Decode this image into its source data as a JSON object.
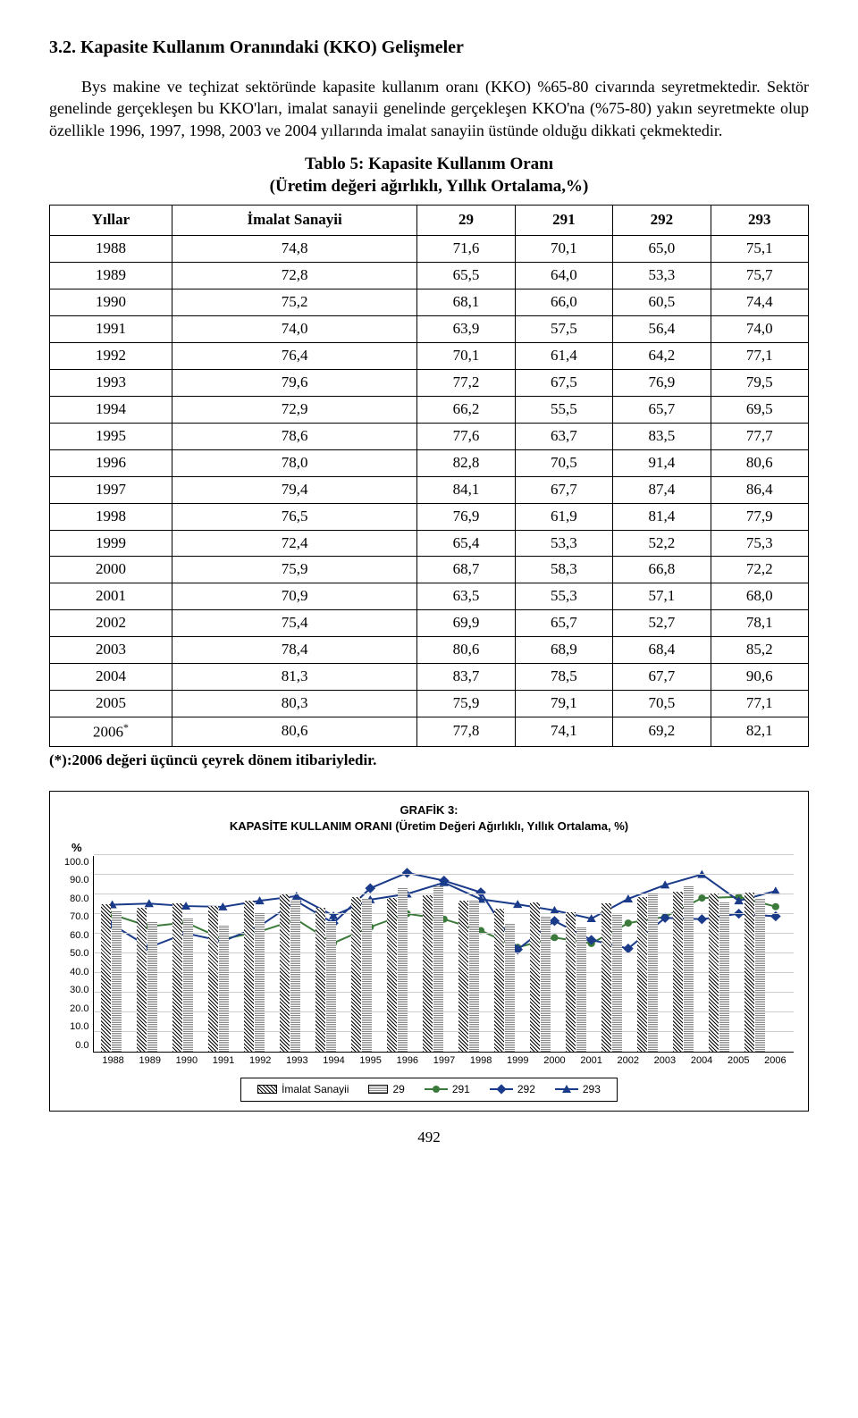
{
  "section_heading": "3.2. Kapasite Kullanım Oranındaki (KKO) Gelişmeler",
  "para1": "Bys makine ve teçhizat sektöründe kapasite kullanım oranı (KKO) %65-80 civarında seyretmektedir. Sektör genelinde gerçekleşen bu KKO'ları, imalat sanayii genelinde gerçekleşen KKO'na (%75-80) yakın seyretmekte olup özellikle 1996, 1997, 1998, 2003 ve 2004 yıllarında imalat sanayiin üstünde olduğu dikkati çekmektedir.",
  "table_title_line1": "Tablo 5: Kapasite Kullanım Oranı",
  "table_title_line2": "(Üretim değeri ağırlıklı, Yıllık Ortalama,%)",
  "table": {
    "columns": [
      "Yıllar",
      "İmalat Sanayii",
      "29",
      "291",
      "292",
      "293"
    ],
    "rows": [
      [
        "1988",
        "74,8",
        "71,6",
        "70,1",
        "65,0",
        "75,1"
      ],
      [
        "1989",
        "72,8",
        "65,5",
        "64,0",
        "53,3",
        "75,7"
      ],
      [
        "1990",
        "75,2",
        "68,1",
        "66,0",
        "60,5",
        "74,4"
      ],
      [
        "1991",
        "74,0",
        "63,9",
        "57,5",
        "56,4",
        "74,0"
      ],
      [
        "1992",
        "76,4",
        "70,1",
        "61,4",
        "64,2",
        "77,1"
      ],
      [
        "1993",
        "79,6",
        "77,2",
        "67,5",
        "76,9",
        "79,5"
      ],
      [
        "1994",
        "72,9",
        "66,2",
        "55,5",
        "65,7",
        "69,5"
      ],
      [
        "1995",
        "78,6",
        "77,6",
        "63,7",
        "83,5",
        "77,7"
      ],
      [
        "1996",
        "78,0",
        "82,8",
        "70,5",
        "91,4",
        "80,6"
      ],
      [
        "1997",
        "79,4",
        "84,1",
        "67,7",
        "87,4",
        "86,4"
      ],
      [
        "1998",
        "76,5",
        "76,9",
        "61,9",
        "81,4",
        "77,9"
      ],
      [
        "1999",
        "72,4",
        "65,4",
        "53,3",
        "52,2",
        "75,3"
      ],
      [
        "2000",
        "75,9",
        "68,7",
        "58,3",
        "66,8",
        "72,2"
      ],
      [
        "2001",
        "70,9",
        "63,5",
        "55,3",
        "57,1",
        "68,0"
      ],
      [
        "2002",
        "75,4",
        "69,9",
        "65,7",
        "52,7",
        "78,1"
      ],
      [
        "2003",
        "78,4",
        "80,6",
        "68,9",
        "68,4",
        "85,2"
      ],
      [
        "2004",
        "81,3",
        "83,7",
        "78,5",
        "67,7",
        "90,6"
      ],
      [
        "2005",
        "80,3",
        "75,9",
        "79,1",
        "70,5",
        "77,1"
      ],
      [
        "2006*",
        "80,6",
        "77,8",
        "74,1",
        "69,2",
        "82,1"
      ]
    ]
  },
  "footnote": "(*):2006 değeri üçüncü çeyrek dönem itibariyledir.",
  "chart": {
    "title_line1": "GRAFİK 3:",
    "title_line2": "KAPASİTE KULLANIM ORANI (Üretim Değeri Ağırlıklı, Yıllık Ortalama, %)",
    "y_label": "%",
    "ylim": [
      0,
      100
    ],
    "ytick_step": 10,
    "yticks": [
      "100.0",
      "90.0",
      "80.0",
      "70.0",
      "60.0",
      "50.0",
      "40.0",
      "30.0",
      "20.0",
      "10.0",
      "0.0"
    ],
    "categories": [
      "1988",
      "1989",
      "1990",
      "1991",
      "1992",
      "1993",
      "1994",
      "1995",
      "1996",
      "1997",
      "1998",
      "1999",
      "2000",
      "2001",
      "2002",
      "2003",
      "2004",
      "2005",
      "2006"
    ],
    "series": {
      "imalat": {
        "label": "İmalat Sanayii",
        "type": "bar",
        "values": [
          74.8,
          72.8,
          75.2,
          74.0,
          76.4,
          79.6,
          72.9,
          78.6,
          78.0,
          79.4,
          76.5,
          72.4,
          75.9,
          70.9,
          75.4,
          78.4,
          81.3,
          80.3,
          80.6
        ]
      },
      "s29": {
        "label": "29",
        "type": "bar",
        "values": [
          71.6,
          65.5,
          68.1,
          63.9,
          70.1,
          77.2,
          66.2,
          77.6,
          82.8,
          84.1,
          76.9,
          65.4,
          68.7,
          63.5,
          69.9,
          80.6,
          83.7,
          75.9,
          77.8
        ]
      },
      "s291": {
        "label": "291",
        "type": "line",
        "color": "#3b7a3b",
        "marker": "circle",
        "values": [
          70.1,
          64.0,
          66.0,
          57.5,
          61.4,
          67.5,
          55.5,
          63.7,
          70.5,
          67.7,
          61.9,
          53.3,
          58.3,
          55.3,
          65.7,
          68.9,
          78.5,
          79.1,
          74.1
        ]
      },
      "s292": {
        "label": "292",
        "type": "line",
        "color": "#1a3a8a",
        "marker": "diamond",
        "values": [
          65.0,
          53.3,
          60.5,
          56.4,
          64.2,
          76.9,
          65.7,
          83.5,
          91.4,
          87.4,
          81.4,
          52.2,
          66.8,
          57.1,
          52.7,
          68.4,
          67.7,
          70.5,
          69.2
        ]
      },
      "s293": {
        "label": "293",
        "type": "line",
        "color": "#1a3a8a",
        "marker": "triangle",
        "values": [
          75.1,
          75.7,
          74.4,
          74.0,
          77.1,
          79.5,
          69.5,
          77.7,
          80.6,
          86.4,
          77.9,
          75.3,
          72.2,
          68.0,
          78.1,
          85.2,
          90.6,
          77.1,
          82.1
        ]
      }
    },
    "grid_color": "#cccccc",
    "background_color": "#ffffff"
  },
  "page_number": "492"
}
